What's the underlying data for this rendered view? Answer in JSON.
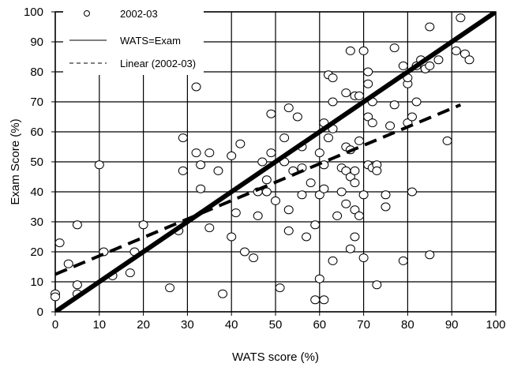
{
  "chart_data": {
    "type": "scatter",
    "title": "",
    "xlabel": "WATS score (%)",
    "ylabel": "Exam Score (%)",
    "xlim": [
      0,
      100
    ],
    "ylim": [
      0,
      100
    ],
    "xticks": [
      "0",
      "10",
      "20",
      "30",
      "40",
      "50",
      "60",
      "70",
      "80",
      "90",
      "100"
    ],
    "yticks": [
      "0",
      "10",
      "20",
      "30",
      "40",
      "50",
      "60",
      "70",
      "80",
      "90",
      "100"
    ],
    "grid": true,
    "legend_position": "top-left",
    "legend": [
      "2002-03",
      "WATS=Exam",
      "Linear (2002-03)"
    ],
    "series": [
      {
        "name": "2002-03",
        "kind": "markers",
        "points": [
          [
            0,
            6
          ],
          [
            0,
            5
          ],
          [
            1,
            23
          ],
          [
            3,
            16
          ],
          [
            5,
            9
          ],
          [
            5,
            29
          ],
          [
            5,
            6
          ],
          [
            11,
            20
          ],
          [
            10,
            49
          ],
          [
            13,
            12
          ],
          [
            17,
            13
          ],
          [
            18,
            20
          ],
          [
            20,
            29
          ],
          [
            26,
            8
          ],
          [
            28,
            27
          ],
          [
            29,
            58
          ],
          [
            29,
            47
          ],
          [
            32,
            53
          ],
          [
            33,
            49
          ],
          [
            33,
            41
          ],
          [
            35,
            53
          ],
          [
            35,
            28
          ],
          [
            37,
            47
          ],
          [
            38,
            6
          ],
          [
            32,
            75
          ],
          [
            40,
            52
          ],
          [
            40,
            25
          ],
          [
            41,
            33
          ],
          [
            42,
            56
          ],
          [
            43,
            20
          ],
          [
            45,
            18
          ],
          [
            46,
            40
          ],
          [
            46,
            32
          ],
          [
            47,
            50
          ],
          [
            48,
            40
          ],
          [
            48,
            44
          ],
          [
            49,
            53
          ],
          [
            50,
            37
          ],
          [
            49,
            66
          ],
          [
            51,
            8
          ],
          [
            52,
            50
          ],
          [
            52,
            58
          ],
          [
            53,
            27
          ],
          [
            53,
            34
          ],
          [
            53,
            68
          ],
          [
            54,
            47
          ],
          [
            55,
            65
          ],
          [
            56,
            39
          ],
          [
            56,
            48
          ],
          [
            56,
            55
          ],
          [
            57,
            25
          ],
          [
            58,
            43
          ],
          [
            59,
            4
          ],
          [
            59,
            29
          ],
          [
            60,
            11
          ],
          [
            60,
            39
          ],
          [
            60,
            53
          ],
          [
            61,
            63
          ],
          [
            61,
            49
          ],
          [
            61,
            41
          ],
          [
            61,
            4
          ],
          [
            62,
            58
          ],
          [
            62,
            79
          ],
          [
            63,
            70
          ],
          [
            63,
            61
          ],
          [
            63,
            17
          ],
          [
            63,
            78
          ],
          [
            64,
            32
          ],
          [
            65,
            48
          ],
          [
            65,
            40
          ],
          [
            66,
            47
          ],
          [
            66,
            55
          ],
          [
            66,
            36
          ],
          [
            66,
            73
          ],
          [
            67,
            87
          ],
          [
            67,
            21
          ],
          [
            67,
            54
          ],
          [
            67,
            45
          ],
          [
            68,
            34
          ],
          [
            68,
            43
          ],
          [
            68,
            47
          ],
          [
            68,
            25
          ],
          [
            68,
            72
          ],
          [
            69,
            57
          ],
          [
            69,
            32
          ],
          [
            69,
            72
          ],
          [
            70,
            87
          ],
          [
            70,
            39
          ],
          [
            70,
            18
          ],
          [
            71,
            49
          ],
          [
            71,
            65
          ],
          [
            71,
            76
          ],
          [
            71,
            80
          ],
          [
            72,
            70
          ],
          [
            72,
            48
          ],
          [
            72,
            63
          ],
          [
            73,
            49
          ],
          [
            73,
            9
          ],
          [
            73,
            47
          ],
          [
            75,
            35
          ],
          [
            75,
            39
          ],
          [
            76,
            62
          ],
          [
            77,
            88
          ],
          [
            77,
            69
          ],
          [
            79,
            82
          ],
          [
            79,
            17
          ],
          [
            80,
            63
          ],
          [
            80,
            76
          ],
          [
            80,
            78
          ],
          [
            81,
            65
          ],
          [
            81,
            40
          ],
          [
            82,
            70
          ],
          [
            82,
            82
          ],
          [
            83,
            84
          ],
          [
            84,
            81
          ],
          [
            84,
            81
          ],
          [
            85,
            95
          ],
          [
            85,
            19
          ],
          [
            85,
            82
          ],
          [
            87,
            84
          ],
          [
            89,
            57
          ],
          [
            91,
            87
          ],
          [
            92,
            98
          ],
          [
            93,
            86
          ],
          [
            94,
            84
          ]
        ]
      },
      {
        "name": "WATS=Exam",
        "kind": "line",
        "points": [
          [
            0,
            0
          ],
          [
            100,
            100
          ]
        ]
      },
      {
        "name": "Linear (2002-03)",
        "kind": "trendline",
        "points": [
          [
            0,
            12.5
          ],
          [
            92,
            69
          ]
        ]
      }
    ]
  }
}
